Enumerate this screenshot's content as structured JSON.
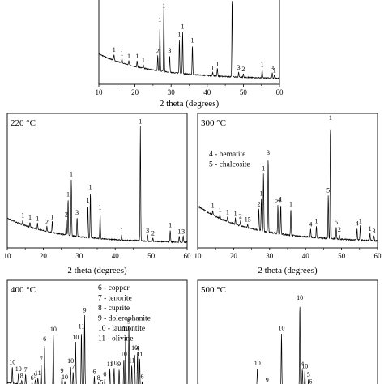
{
  "chart_data": [
    {
      "type": "line",
      "panel_label": "",
      "xlabel": "2 theta (degrees)",
      "xlim": [
        10,
        60
      ],
      "xticks": [
        10,
        20,
        30,
        40,
        50,
        60
      ],
      "peaks": [
        {
          "x": 14.2,
          "h": 0.07,
          "label": "1"
        },
        {
          "x": 16.4,
          "h": 0.06,
          "label": "1"
        },
        {
          "x": 18.3,
          "h": 0.05,
          "label": "1"
        },
        {
          "x": 20.6,
          "h": 0.07,
          "label": "1"
        },
        {
          "x": 22.3,
          "h": 0.04,
          "label": "1"
        },
        {
          "x": 26.3,
          "h": 0.18,
          "label": "2"
        },
        {
          "x": 26.9,
          "h": 0.55,
          "label": "1"
        },
        {
          "x": 28.0,
          "h": 0.8,
          "label": "1"
        },
        {
          "x": 29.6,
          "h": 0.2,
          "label": "3"
        },
        {
          "x": 32.3,
          "h": 0.4,
          "label": "1"
        },
        {
          "x": 33.2,
          "h": 0.5,
          "label": "1"
        },
        {
          "x": 35.9,
          "h": 0.35,
          "label": "1"
        },
        {
          "x": 41.5,
          "h": 0.04,
          "label": "1"
        },
        {
          "x": 42.8,
          "h": 0.09,
          "label": "1"
        },
        {
          "x": 46.9,
          "h": 0.95,
          "label": ""
        },
        {
          "x": 48.7,
          "h": 0.06,
          "label": "3"
        },
        {
          "x": 50.0,
          "h": 0.04,
          "label": "2"
        },
        {
          "x": 55.2,
          "h": 0.1,
          "label": "1"
        },
        {
          "x": 58.0,
          "h": 0.06,
          "label": "3"
        },
        {
          "x": 58.6,
          "h": 0.04,
          "label": "1"
        }
      ]
    },
    {
      "type": "line",
      "panel_label": "220 °C",
      "xlabel": "2 theta (degrees)",
      "xlim": [
        10,
        60
      ],
      "xticks": [
        10,
        20,
        30,
        40,
        50,
        60
      ],
      "peaks": [
        {
          "x": 14.3,
          "h": 0.04,
          "label": "1"
        },
        {
          "x": 16.3,
          "h": 0.04,
          "label": "1"
        },
        {
          "x": 18.4,
          "h": 0.05,
          "label": "1"
        },
        {
          "x": 21.0,
          "h": 0.04,
          "label": "2"
        },
        {
          "x": 22.5,
          "h": 0.09,
          "label": "1"
        },
        {
          "x": 26.4,
          "h": 0.13,
          "label": "2"
        },
        {
          "x": 26.9,
          "h": 0.3,
          "label": "1"
        },
        {
          "x": 27.8,
          "h": 0.47,
          "label": "1"
        },
        {
          "x": 29.4,
          "h": 0.16,
          "label": "3"
        },
        {
          "x": 32.4,
          "h": 0.27,
          "label": "1"
        },
        {
          "x": 33.1,
          "h": 0.38,
          "label": "1"
        },
        {
          "x": 35.8,
          "h": 0.22,
          "label": "1"
        },
        {
          "x": 41.8,
          "h": 0.04,
          "label": "1"
        },
        {
          "x": 47.0,
          "h": 0.95,
          "label": "1"
        },
        {
          "x": 49.0,
          "h": 0.05,
          "label": "3"
        },
        {
          "x": 50.5,
          "h": 0.03,
          "label": "2"
        },
        {
          "x": 55.3,
          "h": 0.1,
          "label": "1"
        },
        {
          "x": 57.8,
          "h": 0.05,
          "label": "1"
        },
        {
          "x": 58.9,
          "h": 0.05,
          "label": "3"
        }
      ]
    },
    {
      "type": "line",
      "panel_label": "300 °C",
      "legend": [
        "4 - hematite",
        "5 - chalcosite"
      ],
      "xlabel": "2 theta (degrees)",
      "xlim": [
        10,
        60
      ],
      "xticks": [
        10,
        20,
        30,
        40,
        50,
        60
      ],
      "peaks": [
        {
          "x": 14.2,
          "h": 0.04,
          "label": "1"
        },
        {
          "x": 16.2,
          "h": 0.03,
          "label": "1"
        },
        {
          "x": 18.3,
          "h": 0.04,
          "label": "1"
        },
        {
          "x": 20.5,
          "h": 0.05,
          "label": "1"
        },
        {
          "x": 21.9,
          "h": 0.04,
          "label": "2"
        },
        {
          "x": 23.9,
          "h": 0.03,
          "label": "15"
        },
        {
          "x": 27.0,
          "h": 0.18,
          "label": "2"
        },
        {
          "x": 27.7,
          "h": 0.27,
          "label": "1"
        },
        {
          "x": 28.3,
          "h": 0.48,
          "label": "1"
        },
        {
          "x": 29.6,
          "h": 0.62,
          "label": "3"
        },
        {
          "x": 32.3,
          "h": 0.24,
          "label": "54"
        },
        {
          "x": 33.1,
          "h": 0.25,
          "label": "1"
        },
        {
          "x": 35.9,
          "h": 0.22,
          "label": "1"
        },
        {
          "x": 41.4,
          "h": 0.07,
          "label": "4"
        },
        {
          "x": 43.0,
          "h": 0.1,
          "label": "1"
        },
        {
          "x": 46.3,
          "h": 0.36,
          "label": "5"
        },
        {
          "x": 46.9,
          "h": 0.96,
          "label": "1"
        },
        {
          "x": 48.5,
          "h": 0.1,
          "label": "5"
        },
        {
          "x": 49.4,
          "h": 0.04,
          "label": "2"
        },
        {
          "x": 54.3,
          "h": 0.1,
          "label": "4"
        },
        {
          "x": 55.2,
          "h": 0.12,
          "label": "1"
        },
        {
          "x": 57.9,
          "h": 0.06,
          "label": "1"
        },
        {
          "x": 59.0,
          "h": 0.04,
          "label": "3"
        }
      ]
    },
    {
      "type": "line",
      "panel_label": "400 °C",
      "legend": [
        "6 - copper",
        "7 - tenorite",
        "8 - cuprite",
        "9 - dolerophanite",
        "10 - laumontite",
        "11 - olivine"
      ],
      "xlim": [
        10,
        60
      ],
      "peaks": [
        {
          "x": 11.4,
          "h": 0.16,
          "label": "10"
        },
        {
          "x": 13.1,
          "h": 0.1,
          "label": "10"
        },
        {
          "x": 14.0,
          "h": 0.04,
          "label": "8"
        },
        {
          "x": 15.1,
          "h": 0.1,
          "label": "7"
        },
        {
          "x": 16.9,
          "h": 0.03,
          "label": "6"
        },
        {
          "x": 17.8,
          "h": 0.06,
          "label": "9"
        },
        {
          "x": 18.5,
          "h": 0.08,
          "label": "11"
        },
        {
          "x": 19.4,
          "h": 0.22,
          "label": "7"
        },
        {
          "x": 20.4,
          "h": 0.42,
          "label": "6"
        },
        {
          "x": 22.8,
          "h": 0.52,
          "label": "10"
        },
        {
          "x": 25.2,
          "h": 0.12,
          "label": "9"
        },
        {
          "x": 26.0,
          "h": 0.06,
          "label": "10"
        },
        {
          "x": 27.6,
          "h": 0.22,
          "label": "10"
        },
        {
          "x": 28.3,
          "h": 0.16,
          "label": "7"
        },
        {
          "x": 29.0,
          "h": 0.45,
          "label": "10"
        },
        {
          "x": 30.6,
          "h": 0.56,
          "label": "11"
        },
        {
          "x": 31.5,
          "h": 0.72,
          "label": "9"
        },
        {
          "x": 34.2,
          "h": 0.12,
          "label": "6"
        },
        {
          "x": 35.4,
          "h": 0.06,
          "label": "8"
        },
        {
          "x": 36.2,
          "h": 0.02,
          "label": "5"
        },
        {
          "x": 37.1,
          "h": 0.1,
          "label": "6"
        },
        {
          "x": 38.5,
          "h": 0.2,
          "label": "11"
        },
        {
          "x": 39.7,
          "h": 0.21,
          "label": "10"
        },
        {
          "x": 41.1,
          "h": 0.2,
          "label": "9"
        },
        {
          "x": 42.4,
          "h": 0.3,
          "label": "10"
        },
        {
          "x": 42.9,
          "h": 0.55,
          "label": "10"
        },
        {
          "x": 43.8,
          "h": 0.62,
          "label": "9"
        },
        {
          "x": 44.6,
          "h": 0.24,
          "label": "11"
        },
        {
          "x": 45.4,
          "h": 0.36,
          "label": "10"
        },
        {
          "x": 46.2,
          "h": 0.36,
          "label": "4"
        },
        {
          "x": 46.8,
          "h": 0.3,
          "label": "11"
        },
        {
          "x": 47.5,
          "h": 0.08,
          "label": "6"
        }
      ]
    },
    {
      "type": "line",
      "panel_label": "500 °C",
      "xlim": [
        10,
        60
      ],
      "peaks": [
        {
          "x": 26.6,
          "h": 0.2,
          "label": "10"
        },
        {
          "x": 29.3,
          "h": 0.04,
          "label": "9"
        },
        {
          "x": 33.3,
          "h": 0.55,
          "label": "10"
        },
        {
          "x": 38.4,
          "h": 0.85,
          "label": "10"
        },
        {
          "x": 39.1,
          "h": 0.2,
          "label": "4"
        },
        {
          "x": 39.8,
          "h": 0.18,
          "label": "10"
        },
        {
          "x": 40.8,
          "h": 0.1,
          "label": "5"
        },
        {
          "x": 41.4,
          "h": 0.03,
          "label": "6"
        }
      ]
    }
  ]
}
